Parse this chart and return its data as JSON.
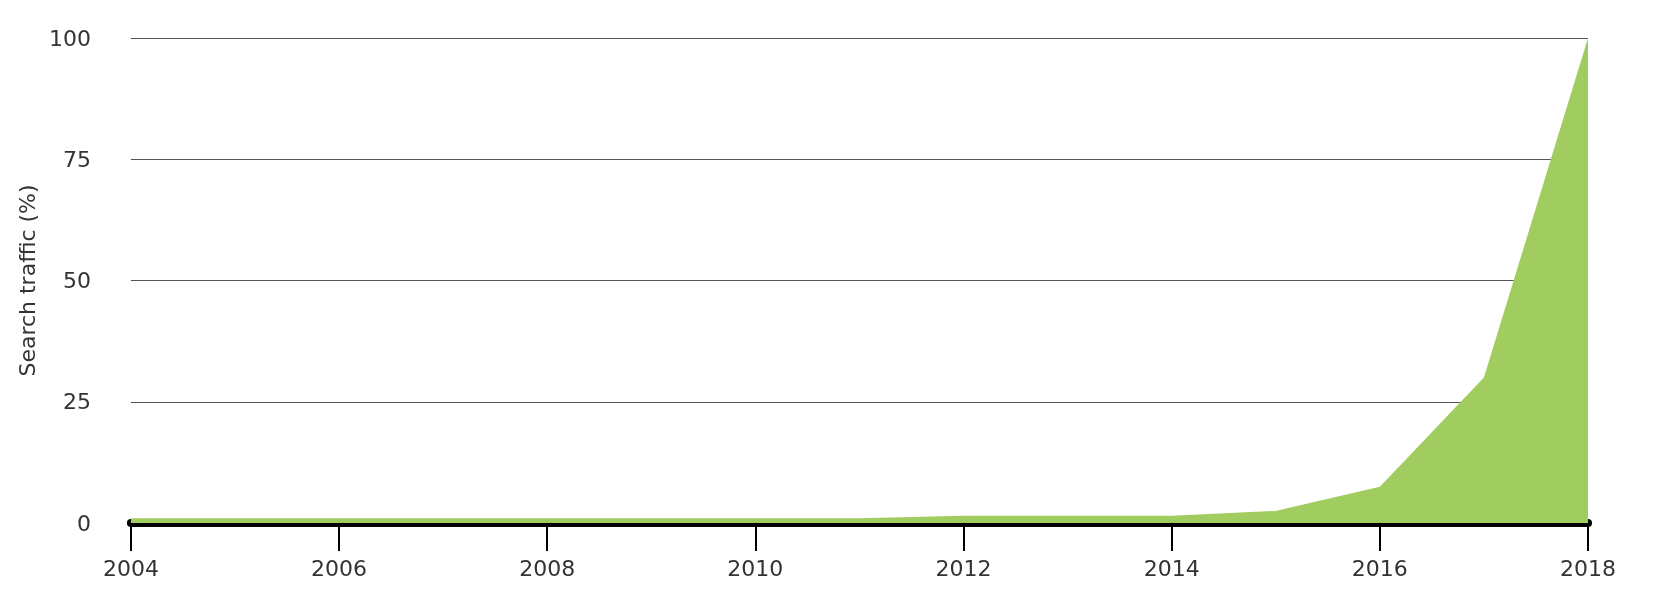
{
  "chart_data": {
    "type": "area",
    "ylabel": "Search traffic (%)",
    "x": [
      2004,
      2005,
      2006,
      2007,
      2008,
      2009,
      2010,
      2011,
      2012,
      2013,
      2014,
      2015,
      2016,
      2017,
      2018
    ],
    "series": [
      {
        "color": "#a1cd60",
        "values": [
          1,
          1,
          1,
          1,
          1,
          1,
          1,
          1,
          1.5,
          1.5,
          1.5,
          2.5,
          7.5,
          30,
          100
        ]
      }
    ],
    "xlim": [
      2004,
      2018
    ],
    "xticks": [
      2004,
      2006,
      2008,
      2010,
      2012,
      2014,
      2016,
      2018
    ],
    "ylim": [
      0,
      100
    ],
    "yticks": [
      0,
      25,
      50,
      75,
      100
    ],
    "grid": "y"
  }
}
